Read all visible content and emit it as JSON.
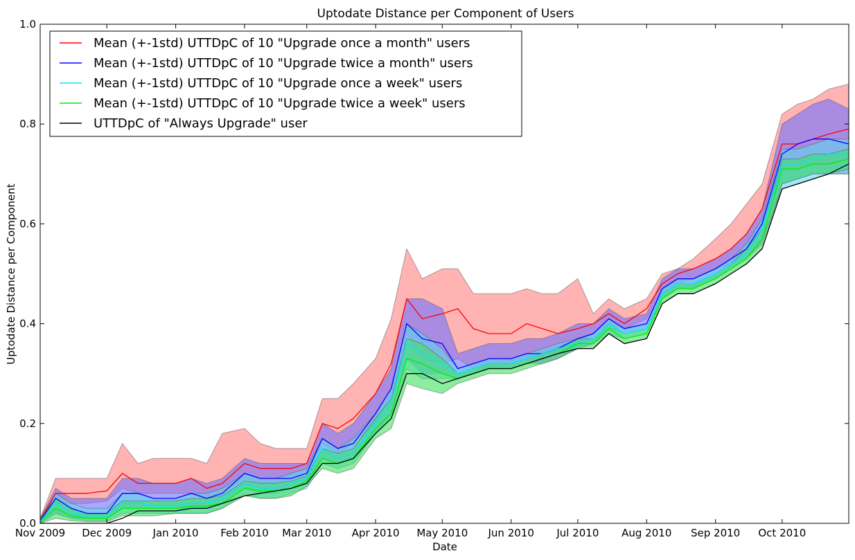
{
  "chart_data": {
    "type": "area",
    "title": "Uptodate Distance per Component of Users",
    "xlabel": "Date",
    "ylabel": "Uptodate Distance per Component",
    "xlim": [
      "2009-11-01",
      "2010-10-31"
    ],
    "ylim": [
      0.0,
      1.0
    ],
    "x_ticks": [
      {
        "date": "2009-11-01",
        "label": "Nov 2009"
      },
      {
        "date": "2009-12-01",
        "label": "Dec 2009"
      },
      {
        "date": "2010-01-01",
        "label": "Jan 2010"
      },
      {
        "date": "2010-02-01",
        "label": "Feb 2010"
      },
      {
        "date": "2010-03-01",
        "label": "Mar 2010"
      },
      {
        "date": "2010-04-01",
        "label": "Apr 2010"
      },
      {
        "date": "2010-05-01",
        "label": "May 2010"
      },
      {
        "date": "2010-06-01",
        "label": "Jun 2010"
      },
      {
        "date": "2010-07-01",
        "label": "Jul 2010"
      },
      {
        "date": "2010-08-01",
        "label": "Aug 2010"
      },
      {
        "date": "2010-09-01",
        "label": "Sep 2010"
      },
      {
        "date": "2010-10-01",
        "label": "Oct 2010"
      }
    ],
    "y_ticks": [
      {
        "value": 0.0,
        "label": "0.0"
      },
      {
        "value": 0.2,
        "label": "0.2"
      },
      {
        "value": 0.4,
        "label": "0.4"
      },
      {
        "value": 0.6,
        "label": "0.6"
      },
      {
        "value": 0.8,
        "label": "0.8"
      },
      {
        "value": 1.0,
        "label": "1.0"
      }
    ],
    "grid": false,
    "legend_position": "top-left",
    "x": [
      "2009-11-01",
      "2009-11-08",
      "2009-11-15",
      "2009-11-22",
      "2009-12-01",
      "2009-12-08",
      "2009-12-15",
      "2009-12-22",
      "2010-01-01",
      "2010-01-08",
      "2010-01-15",
      "2010-01-22",
      "2010-02-01",
      "2010-02-08",
      "2010-02-15",
      "2010-02-22",
      "2010-03-01",
      "2010-03-08",
      "2010-03-15",
      "2010-03-22",
      "2010-04-01",
      "2010-04-08",
      "2010-04-15",
      "2010-04-22",
      "2010-05-01",
      "2010-05-08",
      "2010-05-15",
      "2010-05-22",
      "2010-06-01",
      "2010-06-08",
      "2010-06-15",
      "2010-06-22",
      "2010-07-01",
      "2010-07-08",
      "2010-07-15",
      "2010-07-22",
      "2010-08-01",
      "2010-08-08",
      "2010-08-15",
      "2010-08-22",
      "2010-09-01",
      "2010-09-08",
      "2010-09-15",
      "2010-09-22",
      "2010-10-01",
      "2010-10-08",
      "2010-10-15",
      "2010-10-22",
      "2010-10-31"
    ],
    "series": [
      {
        "name": "Mean (+-1std) UTTDpC of 10 \"Upgrade once a month\" users",
        "color": "#ff0000",
        "fill": "#ff8080",
        "mean": [
          0.005,
          0.06,
          0.06,
          0.06,
          0.065,
          0.1,
          0.08,
          0.08,
          0.08,
          0.09,
          0.07,
          0.08,
          0.12,
          0.11,
          0.11,
          0.11,
          0.12,
          0.2,
          0.19,
          0.21,
          0.26,
          0.32,
          0.45,
          0.41,
          0.42,
          0.43,
          0.39,
          0.38,
          0.38,
          0.4,
          0.39,
          0.38,
          0.39,
          0.4,
          0.42,
          0.4,
          0.43,
          0.48,
          0.5,
          0.51,
          0.53,
          0.55,
          0.58,
          0.63,
          0.76,
          0.76,
          0.77,
          0.78,
          0.79
        ],
        "lower": [
          0.0,
          0.04,
          0.04,
          0.04,
          0.045,
          0.07,
          0.06,
          0.06,
          0.06,
          0.06,
          0.05,
          0.06,
          0.09,
          0.08,
          0.08,
          0.09,
          0.1,
          0.16,
          0.14,
          0.16,
          0.2,
          0.26,
          0.38,
          0.33,
          0.32,
          0.33,
          0.31,
          0.31,
          0.32,
          0.33,
          0.33,
          0.34,
          0.36,
          0.38,
          0.4,
          0.39,
          0.41,
          0.46,
          0.48,
          0.49,
          0.51,
          0.52,
          0.55,
          0.59,
          0.71,
          0.71,
          0.72,
          0.72,
          0.73
        ],
        "upper": [
          0.01,
          0.09,
          0.09,
          0.09,
          0.09,
          0.16,
          0.12,
          0.13,
          0.13,
          0.13,
          0.12,
          0.18,
          0.19,
          0.16,
          0.15,
          0.15,
          0.15,
          0.25,
          0.25,
          0.28,
          0.33,
          0.41,
          0.55,
          0.49,
          0.51,
          0.51,
          0.46,
          0.46,
          0.46,
          0.47,
          0.46,
          0.46,
          0.49,
          0.42,
          0.45,
          0.43,
          0.45,
          0.5,
          0.51,
          0.53,
          0.57,
          0.6,
          0.64,
          0.68,
          0.82,
          0.84,
          0.85,
          0.87,
          0.88
        ]
      },
      {
        "name": "Mean (+-1std) UTTDpC of 10 \"Upgrade twice a month\" users",
        "color": "#0000ff",
        "fill": "#7070ff",
        "mean": [
          0.005,
          0.05,
          0.03,
          0.02,
          0.02,
          0.06,
          0.06,
          0.05,
          0.05,
          0.06,
          0.05,
          0.06,
          0.1,
          0.09,
          0.09,
          0.09,
          0.1,
          0.17,
          0.15,
          0.16,
          0.22,
          0.27,
          0.4,
          0.37,
          0.36,
          0.31,
          0.32,
          0.33,
          0.33,
          0.34,
          0.34,
          0.35,
          0.37,
          0.38,
          0.41,
          0.39,
          0.4,
          0.47,
          0.49,
          0.49,
          0.51,
          0.53,
          0.55,
          0.6,
          0.74,
          0.76,
          0.77,
          0.77,
          0.76
        ],
        "lower": [
          0.0,
          0.02,
          0.01,
          0.01,
          0.01,
          0.03,
          0.03,
          0.03,
          0.03,
          0.03,
          0.03,
          0.04,
          0.07,
          0.06,
          0.06,
          0.07,
          0.08,
          0.13,
          0.12,
          0.13,
          0.18,
          0.22,
          0.33,
          0.3,
          0.3,
          0.29,
          0.3,
          0.31,
          0.31,
          0.32,
          0.32,
          0.33,
          0.35,
          0.36,
          0.39,
          0.38,
          0.39,
          0.45,
          0.47,
          0.47,
          0.49,
          0.51,
          0.53,
          0.56,
          0.68,
          0.69,
          0.7,
          0.7,
          0.7
        ],
        "upper": [
          0.01,
          0.07,
          0.05,
          0.05,
          0.05,
          0.09,
          0.09,
          0.08,
          0.08,
          0.09,
          0.08,
          0.09,
          0.13,
          0.12,
          0.12,
          0.12,
          0.12,
          0.2,
          0.18,
          0.2,
          0.26,
          0.31,
          0.45,
          0.45,
          0.43,
          0.34,
          0.35,
          0.36,
          0.36,
          0.37,
          0.37,
          0.38,
          0.4,
          0.4,
          0.43,
          0.41,
          0.42,
          0.49,
          0.51,
          0.51,
          0.53,
          0.55,
          0.58,
          0.63,
          0.8,
          0.82,
          0.84,
          0.85,
          0.83
        ]
      },
      {
        "name": "Mean (+-1std) UTTDpC of 10 \"Upgrade once a week\" users",
        "color": "#00e5ff",
        "fill": "#60d8ec",
        "mean": [
          0.004,
          0.04,
          0.02,
          0.015,
          0.015,
          0.04,
          0.04,
          0.035,
          0.035,
          0.04,
          0.04,
          0.05,
          0.08,
          0.07,
          0.07,
          0.08,
          0.09,
          0.15,
          0.13,
          0.14,
          0.2,
          0.24,
          0.36,
          0.34,
          0.32,
          0.3,
          0.31,
          0.32,
          0.32,
          0.33,
          0.34,
          0.35,
          0.36,
          0.37,
          0.4,
          0.38,
          0.39,
          0.46,
          0.48,
          0.48,
          0.5,
          0.52,
          0.54,
          0.59,
          0.72,
          0.72,
          0.73,
          0.74,
          0.74
        ],
        "lower": [
          0.0,
          0.02,
          0.01,
          0.005,
          0.005,
          0.02,
          0.02,
          0.02,
          0.02,
          0.02,
          0.02,
          0.03,
          0.06,
          0.05,
          0.05,
          0.06,
          0.07,
          0.12,
          0.11,
          0.12,
          0.18,
          0.21,
          0.31,
          0.29,
          0.29,
          0.29,
          0.3,
          0.31,
          0.31,
          0.32,
          0.33,
          0.34,
          0.35,
          0.36,
          0.38,
          0.37,
          0.38,
          0.45,
          0.47,
          0.47,
          0.49,
          0.51,
          0.53,
          0.57,
          0.67,
          0.68,
          0.69,
          0.7,
          0.7
        ],
        "upper": [
          0.01,
          0.06,
          0.04,
          0.03,
          0.03,
          0.06,
          0.06,
          0.05,
          0.05,
          0.06,
          0.06,
          0.07,
          0.1,
          0.09,
          0.09,
          0.1,
          0.11,
          0.17,
          0.15,
          0.17,
          0.22,
          0.27,
          0.4,
          0.38,
          0.35,
          0.31,
          0.32,
          0.33,
          0.33,
          0.34,
          0.35,
          0.36,
          0.37,
          0.38,
          0.41,
          0.39,
          0.4,
          0.47,
          0.49,
          0.49,
          0.51,
          0.53,
          0.56,
          0.61,
          0.75,
          0.75,
          0.76,
          0.77,
          0.77
        ]
      },
      {
        "name": "Mean (+-1std) UTTDpC of 10 \"Upgrade twice a week\" users",
        "color": "#00ee00",
        "fill": "#40e060",
        "mean": [
          0.003,
          0.03,
          0.015,
          0.01,
          0.01,
          0.03,
          0.03,
          0.03,
          0.03,
          0.035,
          0.035,
          0.04,
          0.07,
          0.065,
          0.065,
          0.07,
          0.085,
          0.13,
          0.12,
          0.13,
          0.19,
          0.22,
          0.33,
          0.32,
          0.3,
          0.29,
          0.3,
          0.31,
          0.31,
          0.32,
          0.33,
          0.34,
          0.36,
          0.36,
          0.39,
          0.37,
          0.38,
          0.45,
          0.47,
          0.47,
          0.49,
          0.51,
          0.53,
          0.57,
          0.71,
          0.71,
          0.72,
          0.72,
          0.73
        ],
        "lower": [
          0.0,
          0.01,
          0.005,
          0.003,
          0.003,
          0.015,
          0.015,
          0.015,
          0.02,
          0.02,
          0.02,
          0.03,
          0.055,
          0.05,
          0.05,
          0.055,
          0.075,
          0.11,
          0.1,
          0.11,
          0.17,
          0.19,
          0.28,
          0.27,
          0.26,
          0.28,
          0.29,
          0.3,
          0.3,
          0.31,
          0.32,
          0.33,
          0.35,
          0.35,
          0.38,
          0.36,
          0.37,
          0.44,
          0.46,
          0.46,
          0.48,
          0.5,
          0.52,
          0.55,
          0.68,
          0.69,
          0.7,
          0.7,
          0.71
        ],
        "upper": [
          0.01,
          0.05,
          0.03,
          0.02,
          0.02,
          0.045,
          0.045,
          0.045,
          0.045,
          0.05,
          0.05,
          0.055,
          0.085,
          0.08,
          0.08,
          0.085,
          0.095,
          0.15,
          0.14,
          0.15,
          0.21,
          0.25,
          0.37,
          0.36,
          0.33,
          0.3,
          0.31,
          0.32,
          0.32,
          0.33,
          0.34,
          0.35,
          0.37,
          0.37,
          0.4,
          0.38,
          0.39,
          0.46,
          0.48,
          0.48,
          0.5,
          0.52,
          0.55,
          0.59,
          0.73,
          0.73,
          0.74,
          0.74,
          0.75
        ]
      },
      {
        "name": "UTTDpC of \"Always Upgrade\" user",
        "color": "#000000",
        "values": [
          0.0,
          0.0,
          0.0,
          0.0,
          0.0,
          0.01,
          0.025,
          0.025,
          0.025,
          0.03,
          0.03,
          0.04,
          0.055,
          0.06,
          0.065,
          0.07,
          0.08,
          0.12,
          0.12,
          0.13,
          0.18,
          0.21,
          0.3,
          0.3,
          0.28,
          0.29,
          0.3,
          0.31,
          0.31,
          0.32,
          0.33,
          0.34,
          0.35,
          0.35,
          0.38,
          0.36,
          0.37,
          0.44,
          0.46,
          0.46,
          0.48,
          0.5,
          0.52,
          0.55,
          0.67,
          0.68,
          0.69,
          0.7,
          0.72
        ]
      }
    ]
  }
}
